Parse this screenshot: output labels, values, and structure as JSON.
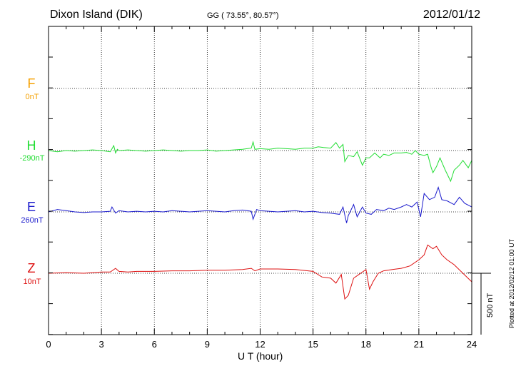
{
  "header": {
    "station": "Dixon Island (DIK)",
    "coords": "GG ( 73.55°,  80.57°)",
    "date": "2012/01/12"
  },
  "side": {
    "plotted": "Plotted at 2012/02/12 01:00 UT",
    "scale": "500 nT"
  },
  "chart_data": {
    "type": "line",
    "title": "Dixon Island (DIK)",
    "xlabel": "U T (hour)",
    "ylabel": "",
    "xlim": [
      0,
      24
    ],
    "xticks": [
      "0",
      "3",
      "6",
      "9",
      "12",
      "15",
      "18",
      "21",
      "24"
    ],
    "grid": true,
    "scale_bar_nT": 500,
    "series": [
      {
        "name": "F",
        "baseline": "0nT",
        "color": "#f5a000",
        "x": [],
        "values": []
      },
      {
        "name": "H",
        "baseline": "-290nT",
        "color": "#22dd33",
        "x": [
          0,
          0.5,
          1,
          1.5,
          2,
          2.5,
          3,
          3.5,
          3.7,
          3.8,
          3.9,
          4,
          4.5,
          5,
          5.5,
          6,
          6.5,
          7,
          7.5,
          8,
          8.5,
          9,
          9.5,
          10,
          10.5,
          11,
          11.5,
          11.6,
          11.7,
          12,
          12.5,
          13,
          13.5,
          14,
          14.5,
          15,
          15.3,
          15.6,
          16,
          16.3,
          16.5,
          16.7,
          16.8,
          17,
          17.3,
          17.5,
          17.8,
          18,
          18.2,
          18.5,
          18.8,
          19,
          19.3,
          19.6,
          20,
          20.3,
          20.6,
          20.8,
          21,
          21.3,
          21.5,
          21.7,
          21.8,
          22,
          22.2,
          22.5,
          22.8,
          23,
          23.3,
          23.5,
          23.8,
          24
        ],
        "values": [
          0,
          -10,
          0,
          -5,
          0,
          5,
          0,
          -10,
          40,
          -20,
          10,
          0,
          5,
          0,
          -5,
          0,
          5,
          0,
          -5,
          0,
          0,
          5,
          -5,
          0,
          5,
          10,
          20,
          70,
          10,
          15,
          10,
          20,
          15,
          10,
          20,
          20,
          30,
          25,
          20,
          65,
          20,
          50,
          -90,
          -40,
          -50,
          -10,
          -120,
          -60,
          -60,
          -20,
          -60,
          -30,
          -40,
          -20,
          -20,
          -15,
          -30,
          0,
          -30,
          -40,
          -30,
          -140,
          -180,
          -130,
          -60,
          -160,
          -250,
          -160,
          -120,
          -80,
          -140,
          -80
        ]
      },
      {
        "name": "E",
        "baseline": "260nT",
        "color": "#1a1acc",
        "x": [
          0,
          0.5,
          1,
          1.5,
          2,
          2.5,
          3,
          3.5,
          3.6,
          3.8,
          4,
          4.5,
          5,
          5.5,
          6,
          6.5,
          7,
          7.5,
          8,
          8.5,
          9,
          9.5,
          10,
          10.5,
          11,
          11.5,
          11.6,
          11.8,
          12,
          12.5,
          13,
          13.5,
          14,
          14.5,
          15,
          15.5,
          16,
          16.5,
          16.7,
          16.9,
          17,
          17.3,
          17.5,
          17.8,
          18,
          18.3,
          18.6,
          19,
          19.3,
          19.6,
          20,
          20.3,
          20.6,
          20.9,
          21.1,
          21.3,
          21.6,
          21.9,
          22.1,
          22.3,
          22.6,
          23,
          23.3,
          23.6,
          24
        ],
        "values": [
          0,
          20,
          10,
          0,
          -5,
          0,
          0,
          5,
          40,
          -10,
          10,
          0,
          5,
          0,
          5,
          0,
          10,
          5,
          0,
          5,
          10,
          5,
          0,
          10,
          15,
          5,
          -60,
          20,
          10,
          5,
          0,
          5,
          10,
          0,
          5,
          -5,
          -10,
          -20,
          40,
          -90,
          -30,
          60,
          -40,
          40,
          -10,
          -20,
          20,
          10,
          30,
          20,
          40,
          60,
          40,
          80,
          -40,
          150,
          100,
          120,
          200,
          100,
          90,
          60,
          120,
          70,
          40
        ]
      },
      {
        "name": "Z",
        "baseline": "10nT",
        "color": "#dd1111",
        "x": [
          0,
          1,
          2,
          3,
          3.5,
          3.8,
          4,
          4.5,
          5,
          6,
          7,
          8,
          9,
          10,
          11,
          11.5,
          11.7,
          12,
          13,
          14,
          15,
          15.5,
          16,
          16.3,
          16.6,
          16.8,
          17,
          17.3,
          17.6,
          18,
          18.2,
          18.4,
          18.7,
          19,
          19.5,
          20,
          20.5,
          21,
          21.3,
          21.5,
          21.8,
          22,
          22.3,
          22.6,
          23,
          23.5,
          24
        ],
        "values": [
          0,
          5,
          0,
          10,
          10,
          40,
          15,
          10,
          15,
          15,
          20,
          20,
          25,
          25,
          30,
          40,
          20,
          35,
          35,
          30,
          15,
          -30,
          -40,
          -80,
          -10,
          -210,
          -180,
          -40,
          -10,
          30,
          -130,
          -70,
          0,
          20,
          30,
          40,
          60,
          110,
          150,
          230,
          200,
          220,
          150,
          110,
          70,
          0,
          -70
        ]
      }
    ]
  }
}
